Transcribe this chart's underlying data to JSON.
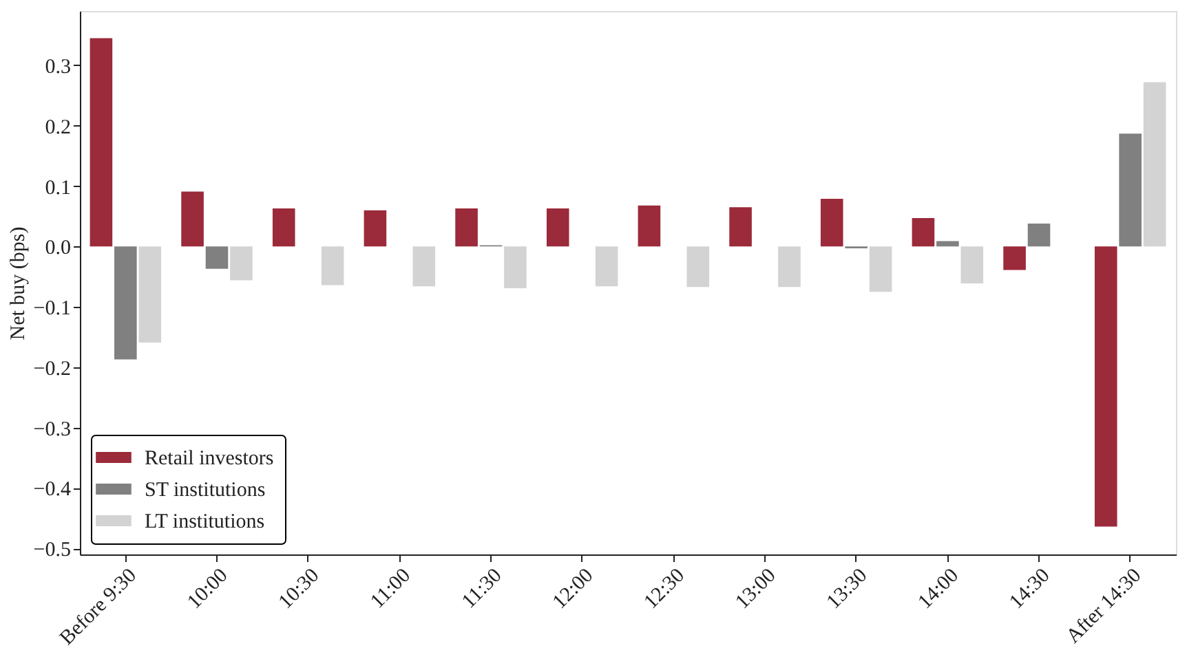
{
  "chart_data": {
    "type": "bar",
    "ylabel": "Net buy (bps)",
    "categories": [
      "Before 9:30",
      "10:00",
      "10:30",
      "11:00",
      "11:30",
      "12:00",
      "12:30",
      "13:00",
      "13:30",
      "14:00",
      "14:30",
      "After 14:30"
    ],
    "series": [
      {
        "name": "Retail investors",
        "color": "#9b2a3a",
        "values": [
          0.345,
          0.091,
          0.063,
          0.06,
          0.063,
          0.063,
          0.068,
          0.065,
          0.079,
          0.047,
          -0.039,
          -0.464
        ]
      },
      {
        "name": "ST institutions",
        "color": "#808080",
        "values": [
          -0.187,
          -0.037,
          null,
          null,
          0.002,
          null,
          null,
          null,
          -0.003,
          0.009,
          0.038,
          0.187
        ]
      },
      {
        "name": "LT institutions",
        "color": "#d3d3d3",
        "values": [
          -0.159,
          -0.056,
          -0.064,
          -0.066,
          -0.069,
          -0.066,
          -0.067,
          -0.067,
          -0.075,
          -0.061,
          null,
          0.272
        ]
      }
    ],
    "ylim": [
      -0.51,
      0.39
    ],
    "yticks": [
      {
        "value": -0.5,
        "label": "−0.5"
      },
      {
        "value": -0.4,
        "label": "−0.4"
      },
      {
        "value": -0.3,
        "label": "−0.3"
      },
      {
        "value": -0.2,
        "label": "−0.2"
      },
      {
        "value": -0.1,
        "label": "−0.1"
      },
      {
        "value": 0,
        "label": "0.0"
      },
      {
        "value": 0.1,
        "label": "0.1"
      },
      {
        "value": 0.2,
        "label": "0.2"
      },
      {
        "value": 0.3,
        "label": "0.3"
      }
    ],
    "legend": "bottom left",
    "grid": false
  }
}
